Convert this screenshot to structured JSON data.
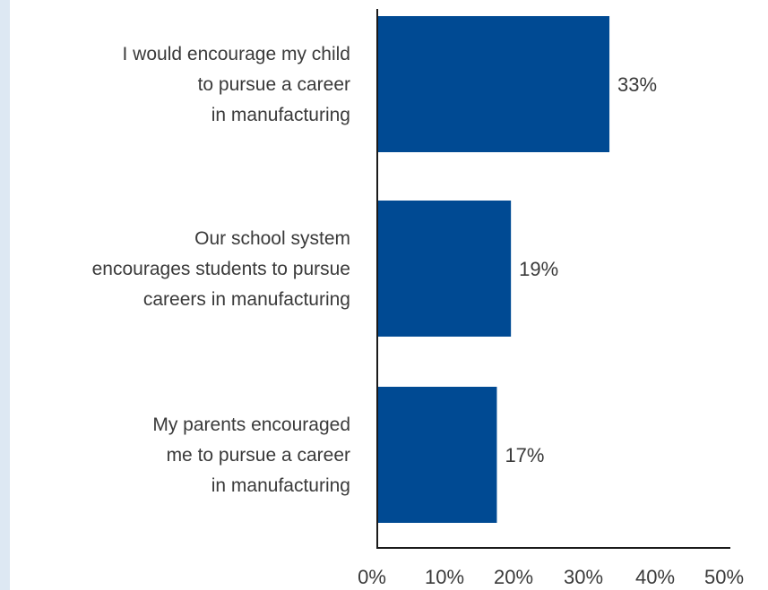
{
  "chart_data": {
    "type": "bar",
    "orientation": "horizontal",
    "categories": [
      [
        "I would encourage my child",
        "to pursue a career",
        "in manufacturing"
      ],
      [
        "Our school system",
        "encourages students to pursue",
        "careers in manufacturing"
      ],
      [
        "My parents encouraged",
        "me to pursue a career",
        "in manufacturing"
      ]
    ],
    "values": [
      33,
      19,
      17
    ],
    "value_labels": [
      "33%",
      "19%",
      "17%"
    ],
    "x_ticks": [
      "0%",
      "10%",
      "20%",
      "30%",
      "40%",
      "50%"
    ],
    "xlim": [
      0,
      50
    ],
    "title": "",
    "xlabel": "",
    "ylabel": "",
    "grid": false,
    "colors": {
      "bar": "#004a93",
      "text": "#3a3a3a",
      "axis": "#1a1a1a",
      "stripe": "#dde8f3"
    }
  }
}
